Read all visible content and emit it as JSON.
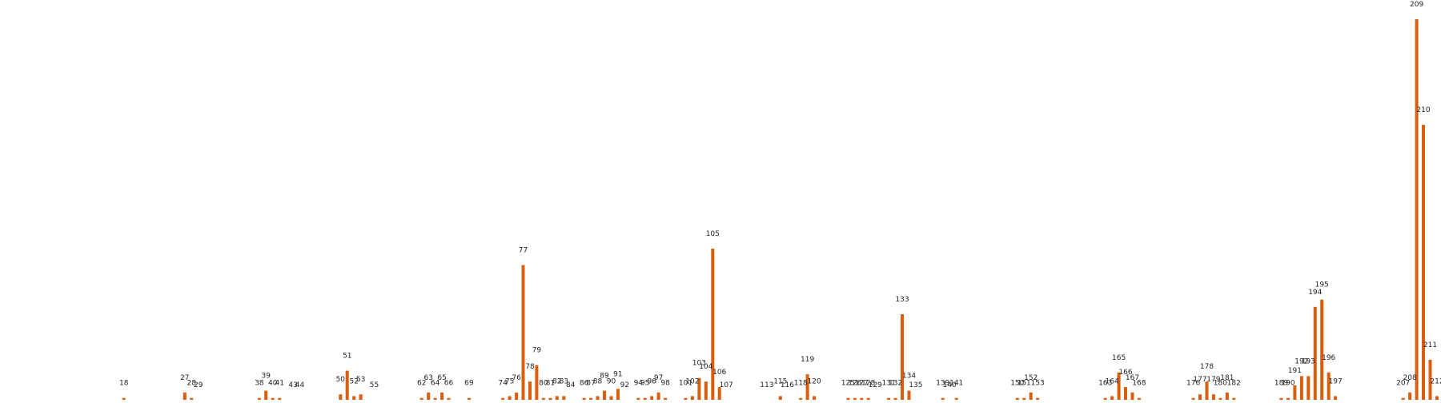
{
  "chart_data": {
    "type": "bar",
    "title": "",
    "xlabel": "",
    "ylabel": "",
    "color": "#d95f0e",
    "x_range": [
      0,
      220
    ],
    "ylim": [
      0,
      209
    ],
    "grid": false,
    "axes_visible": false,
    "bars": [
      {
        "x": 18,
        "value": 1
      },
      {
        "x": 27,
        "value": 4
      },
      {
        "x": 28,
        "value": 1
      },
      {
        "x": 29,
        "value": 0
      },
      {
        "x": 38,
        "value": 1
      },
      {
        "x": 39,
        "value": 5
      },
      {
        "x": 40,
        "value": 1
      },
      {
        "x": 41,
        "value": 1
      },
      {
        "x": 43,
        "value": 0
      },
      {
        "x": 44,
        "value": 0
      },
      {
        "x": 50,
        "value": 3
      },
      {
        "x": 51,
        "value": 16
      },
      {
        "x": 52,
        "value": 2
      },
      {
        "x": 53,
        "value": 3
      },
      {
        "x": 55,
        "value": 0
      },
      {
        "x": 62,
        "value": 1
      },
      {
        "x": 63,
        "value": 4
      },
      {
        "x": 64,
        "value": 1
      },
      {
        "x": 65,
        "value": 4
      },
      {
        "x": 66,
        "value": 1
      },
      {
        "x": 69,
        "value": 1
      },
      {
        "x": 74,
        "value": 1
      },
      {
        "x": 75,
        "value": 2
      },
      {
        "x": 76,
        "value": 4
      },
      {
        "x": 77,
        "value": 74
      },
      {
        "x": 78,
        "value": 10
      },
      {
        "x": 79,
        "value": 19
      },
      {
        "x": 80,
        "value": 1
      },
      {
        "x": 81,
        "value": 1
      },
      {
        "x": 82,
        "value": 2
      },
      {
        "x": 83,
        "value": 2
      },
      {
        "x": 84,
        "value": 0
      },
      {
        "x": 86,
        "value": 1
      },
      {
        "x": 87,
        "value": 1
      },
      {
        "x": 88,
        "value": 2
      },
      {
        "x": 89,
        "value": 5
      },
      {
        "x": 90,
        "value": 2
      },
      {
        "x": 91,
        "value": 6
      },
      {
        "x": 92,
        "value": 0
      },
      {
        "x": 94,
        "value": 1
      },
      {
        "x": 95,
        "value": 1
      },
      {
        "x": 96,
        "value": 2
      },
      {
        "x": 97,
        "value": 4
      },
      {
        "x": 98,
        "value": 1
      },
      {
        "x": 101,
        "value": 1
      },
      {
        "x": 102,
        "value": 2
      },
      {
        "x": 103,
        "value": 12
      },
      {
        "x": 104,
        "value": 10
      },
      {
        "x": 105,
        "value": 83
      },
      {
        "x": 106,
        "value": 7
      },
      {
        "x": 107,
        "value": 0
      },
      {
        "x": 113,
        "value": 0
      },
      {
        "x": 115,
        "value": 2
      },
      {
        "x": 116,
        "value": 0
      },
      {
        "x": 118,
        "value": 1
      },
      {
        "x": 119,
        "value": 14
      },
      {
        "x": 120,
        "value": 2
      },
      {
        "x": 125,
        "value": 1
      },
      {
        "x": 126,
        "value": 1
      },
      {
        "x": 127,
        "value": 1
      },
      {
        "x": 128,
        "value": 1
      },
      {
        "x": 129,
        "value": 0
      },
      {
        "x": 131,
        "value": 1
      },
      {
        "x": 132,
        "value": 1
      },
      {
        "x": 133,
        "value": 47
      },
      {
        "x": 134,
        "value": 5
      },
      {
        "x": 135,
        "value": 0
      },
      {
        "x": 139,
        "value": 1
      },
      {
        "x": 140,
        "value": 0
      },
      {
        "x": 141,
        "value": 1
      },
      {
        "x": 150,
        "value": 1
      },
      {
        "x": 151,
        "value": 1
      },
      {
        "x": 152,
        "value": 4
      },
      {
        "x": 153,
        "value": 1
      },
      {
        "x": 163,
        "value": 1
      },
      {
        "x": 164,
        "value": 2
      },
      {
        "x": 165,
        "value": 15
      },
      {
        "x": 166,
        "value": 7
      },
      {
        "x": 167,
        "value": 4
      },
      {
        "x": 168,
        "value": 1
      },
      {
        "x": 176,
        "value": 1
      },
      {
        "x": 177,
        "value": 3
      },
      {
        "x": 178,
        "value": 10
      },
      {
        "x": 179,
        "value": 3
      },
      {
        "x": 180,
        "value": 1
      },
      {
        "x": 181,
        "value": 4
      },
      {
        "x": 182,
        "value": 1
      },
      {
        "x": 189,
        "value": 1
      },
      {
        "x": 190,
        "value": 1
      },
      {
        "x": 191,
        "value": 8
      },
      {
        "x": 192,
        "value": 13
      },
      {
        "x": 193,
        "value": 13
      },
      {
        "x": 194,
        "value": 51
      },
      {
        "x": 195,
        "value": 55
      },
      {
        "x": 196,
        "value": 15
      },
      {
        "x": 197,
        "value": 2
      },
      {
        "x": 207,
        "value": 1
      },
      {
        "x": 208,
        "value": 4
      },
      {
        "x": 209,
        "value": 209
      },
      {
        "x": 210,
        "value": 151
      },
      {
        "x": 211,
        "value": 22
      },
      {
        "x": 212,
        "value": 2
      }
    ]
  }
}
